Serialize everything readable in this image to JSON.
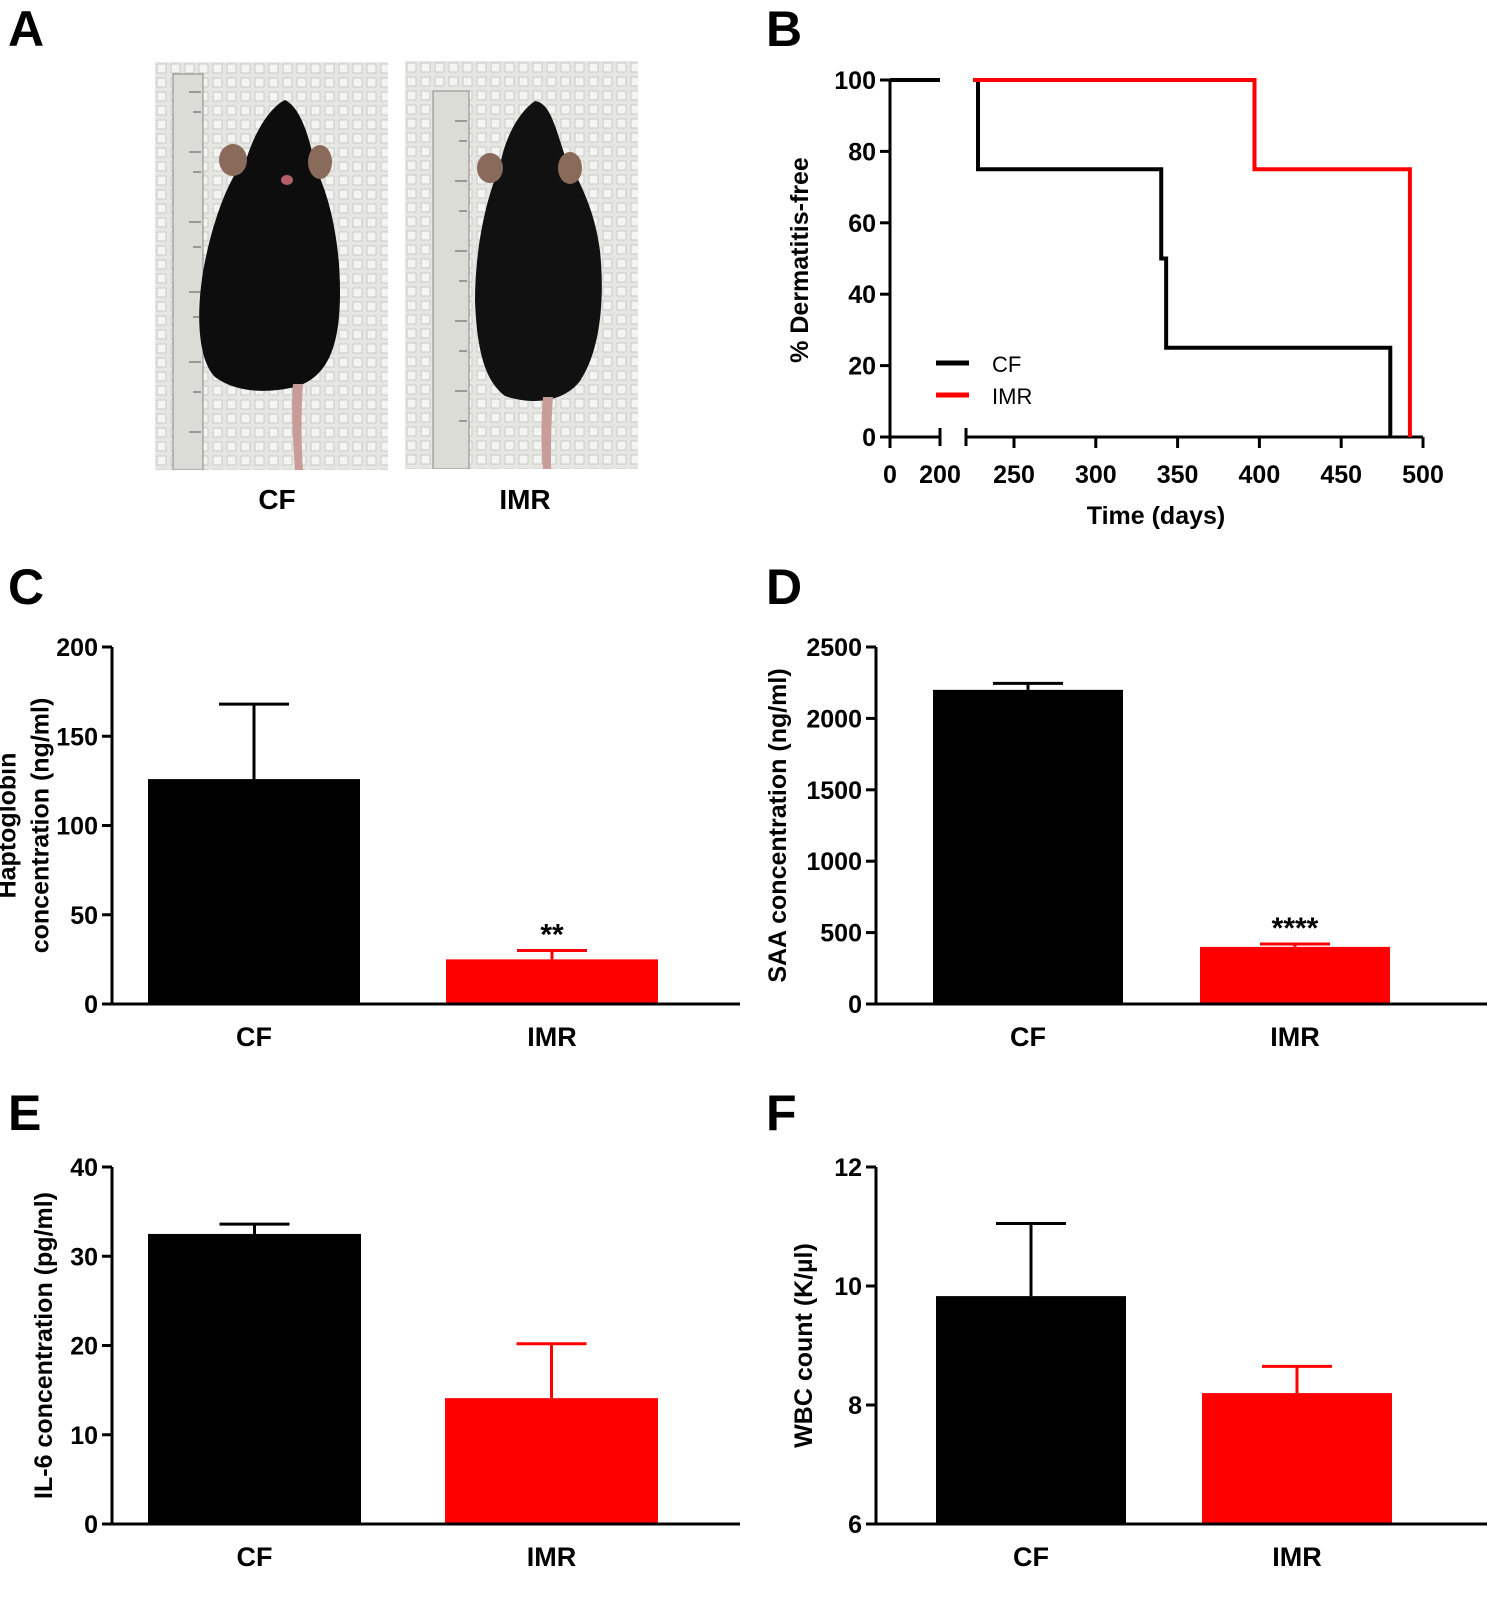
{
  "panels": {
    "A": {
      "letter": "A",
      "photos": [
        {
          "label": "CF",
          "description": "mouse-photo-dorsal-view-with-ruler"
        },
        {
          "label": "IMR",
          "description": "mouse-photo-dorsal-view-with-ruler"
        }
      ]
    },
    "B": {
      "letter": "B"
    },
    "C": {
      "letter": "C"
    },
    "D": {
      "letter": "D"
    },
    "E": {
      "letter": "E"
    },
    "F": {
      "letter": "F"
    }
  },
  "colors": {
    "CF": "#000000",
    "IMR": "#ff0000"
  },
  "chart_data": [
    {
      "id": "B",
      "type": "line",
      "subtype": "kaplan-meier-step",
      "title": "",
      "xlabel": "Time (days)",
      "ylabel": "% Dermatitis-free",
      "xlim": [
        0,
        500
      ],
      "x_axis_break": [
        200,
        220
      ],
      "ylim": [
        0,
        100
      ],
      "xticks": [
        "0",
        "200",
        "250",
        "300",
        "350",
        "400",
        "450",
        "500"
      ],
      "xtick_values": [
        0,
        200,
        250,
        300,
        350,
        400,
        450,
        500
      ],
      "yticks": [
        "0",
        "20",
        "40",
        "60",
        "80",
        "100"
      ],
      "ytick_values": [
        0,
        20,
        40,
        60,
        80,
        100
      ],
      "legend_position": "bottom-left",
      "series": [
        {
          "name": "CF",
          "color": "#000000",
          "x": [
            0,
            228,
            228,
            340,
            340,
            343,
            343,
            480,
            480
          ],
          "y": [
            100,
            100,
            75,
            75,
            50,
            50,
            25,
            25,
            0
          ]
        },
        {
          "name": "IMR",
          "color": "#ff0000",
          "x": [
            0,
            397,
            397,
            492,
            492
          ],
          "y": [
            100,
            100,
            75,
            75,
            0
          ]
        }
      ]
    },
    {
      "id": "C",
      "type": "bar",
      "categories": [
        "CF",
        "IMR"
      ],
      "values": [
        126,
        25
      ],
      "error_upper": [
        168,
        30
      ],
      "colors": [
        "#000000",
        "#ff0000"
      ],
      "annotations": [
        "",
        "**"
      ],
      "ylabel_lines": [
        "Haptoglobin",
        "concentration (ng/ml)"
      ],
      "xlabel": "",
      "ylim": [
        0,
        200
      ],
      "yticks": [
        "0",
        "50",
        "100",
        "150",
        "200"
      ],
      "ytick_values": [
        0,
        50,
        100,
        150,
        200
      ]
    },
    {
      "id": "D",
      "type": "bar",
      "categories": [
        "CF",
        "IMR"
      ],
      "values": [
        2200,
        400
      ],
      "error_upper": [
        2245,
        420
      ],
      "colors": [
        "#000000",
        "#ff0000"
      ],
      "annotations": [
        "",
        "****"
      ],
      "ylabel_lines": [
        "SAA concentration (ng/ml)"
      ],
      "xlabel": "",
      "ylim": [
        0,
        2500
      ],
      "yticks": [
        "0",
        "500",
        "1000",
        "1500",
        "2000",
        "2500"
      ],
      "ytick_values": [
        0,
        500,
        1000,
        1500,
        2000,
        2500
      ]
    },
    {
      "id": "E",
      "type": "bar",
      "categories": [
        "CF",
        "IMR"
      ],
      "values": [
        32.5,
        14.1
      ],
      "error_upper": [
        33.6,
        20.2
      ],
      "colors": [
        "#000000",
        "#ff0000"
      ],
      "annotations": [
        "",
        ""
      ],
      "ylabel_lines": [
        "IL-6 concentration (pg/ml)"
      ],
      "xlabel": "",
      "ylim": [
        0,
        40
      ],
      "yticks": [
        "0",
        "10",
        "20",
        "30",
        "40"
      ],
      "ytick_values": [
        0,
        10,
        20,
        30,
        40
      ]
    },
    {
      "id": "F",
      "type": "bar",
      "categories": [
        "CF",
        "IMR"
      ],
      "values": [
        9.83,
        8.2
      ],
      "error_upper": [
        11.05,
        8.65
      ],
      "colors": [
        "#000000",
        "#ff0000"
      ],
      "annotations": [
        "",
        ""
      ],
      "ylabel_lines": [
        "WBC count (K/µl)"
      ],
      "xlabel": "",
      "ylim": [
        6,
        12
      ],
      "yticks": [
        "6",
        "8",
        "10",
        "12"
      ],
      "ytick_values": [
        6,
        8,
        10,
        12
      ]
    }
  ]
}
